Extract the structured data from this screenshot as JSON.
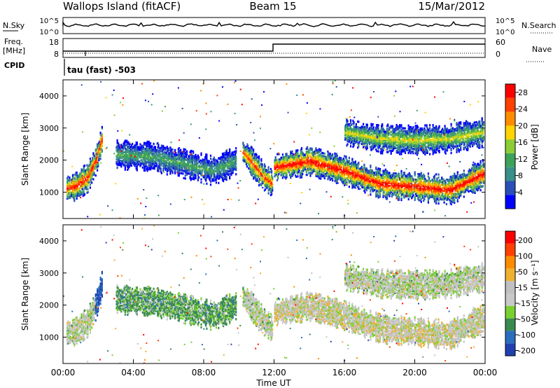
{
  "header": {
    "station": "Wallops Island (fitACF)",
    "beam": "Beam 15",
    "date": "15/Mar/2012"
  },
  "top_panels": {
    "nsky_label": "N.Sky",
    "nsky_ticks": [
      "10^5",
      "10^0"
    ],
    "nsearch_label": "N.Search",
    "nsearch_ticks": [
      "10^5",
      "10^0"
    ],
    "freq_label_line1": "Freq.",
    "freq_label_line2": "[MHz]",
    "freq_ticks": [
      "18",
      "8"
    ],
    "nave_label": "Nave",
    "nave_ticks": [
      "60",
      "0"
    ],
    "cpid_label": "CPID",
    "cpid_text": "tau (fast) -503"
  },
  "colors": {
    "power_scale": [
      "#0000ff",
      "#2a4fb8",
      "#3a8f8a",
      "#3ca25a",
      "#8ccc36",
      "#ffd400",
      "#ff8c00",
      "#ff4000",
      "#ff0000"
    ],
    "velocity_scale": [
      "#2040b0",
      "#2a6ec0",
      "#3a8a50",
      "#7ad030",
      "#c8c8c8",
      "#c0c0c0",
      "#f0b030",
      "#ff8c00",
      "#ff4000",
      "#ff0000"
    ],
    "frame": "#000000"
  },
  "chart_data": [
    {
      "type": "heatmap",
      "panel": "power",
      "ylabel": "Slant Range [km]",
      "y_ticks": [
        "4000",
        "3000",
        "2000",
        "1000"
      ],
      "ylim": [
        180,
        4500
      ],
      "xlim": [
        0,
        24
      ],
      "colorbar_label": "Power [dB]",
      "colorbar_ticks": [
        "28",
        "24",
        "20",
        "16",
        "12",
        "8",
        "4"
      ],
      "colorbar_range": [
        0,
        30
      ],
      "bands": [
        {
          "name": "F-region backscatter (00-02 UT)",
          "x": [
            0.2,
            0.8,
            1.4,
            1.9,
            2.2
          ],
          "y": [
            1150,
            1250,
            1500,
            2100,
            2700
          ],
          "peak_db": 28
        },
        {
          "name": "ionospheric arc (04-10 UT)",
          "x": [
            3.0,
            5.0,
            7.0,
            8.5,
            9.8
          ],
          "y": [
            2200,
            2150,
            1900,
            1700,
            2000
          ],
          "peak_db": 12
        },
        {
          "name": "evening echo (10-12 UT)",
          "x": [
            10.2,
            10.8,
            11.4,
            11.9
          ],
          "y": [
            2300,
            1900,
            1500,
            1300
          ],
          "peak_db": 26
        },
        {
          "name": "ground scatter (12-24 UT)",
          "x": [
            12.0,
            14.0,
            16.0,
            18.0,
            20.0,
            22.0,
            23.9
          ],
          "y": [
            1800,
            2000,
            1700,
            1300,
            1200,
            1100,
            1600
          ],
          "peak_db": 30
        },
        {
          "name": "upper band (16-24 UT)",
          "x": [
            16.0,
            18.0,
            20.0,
            22.0,
            23.9
          ],
          "y": [
            2900,
            2700,
            2650,
            2700,
            2900
          ],
          "peak_db": 18
        }
      ]
    },
    {
      "type": "heatmap",
      "panel": "velocity",
      "ylabel": "Slant Range [km]",
      "xlabel": "Time UT",
      "x_ticks": [
        "00:00",
        "04:00",
        "08:00",
        "12:00",
        "16:00",
        "20:00",
        "00:00"
      ],
      "y_ticks": [
        "4000",
        "3000",
        "2000",
        "1000"
      ],
      "ylim": [
        180,
        4500
      ],
      "xlim": [
        0,
        24
      ],
      "colorbar_label": "Velocity [m s⁻¹]",
      "colorbar_ticks": [
        "200",
        "100",
        "50",
        "15",
        "-15",
        "-50",
        "-100",
        "-200"
      ],
      "colorbar_range": [
        -250,
        250
      ]
    }
  ]
}
